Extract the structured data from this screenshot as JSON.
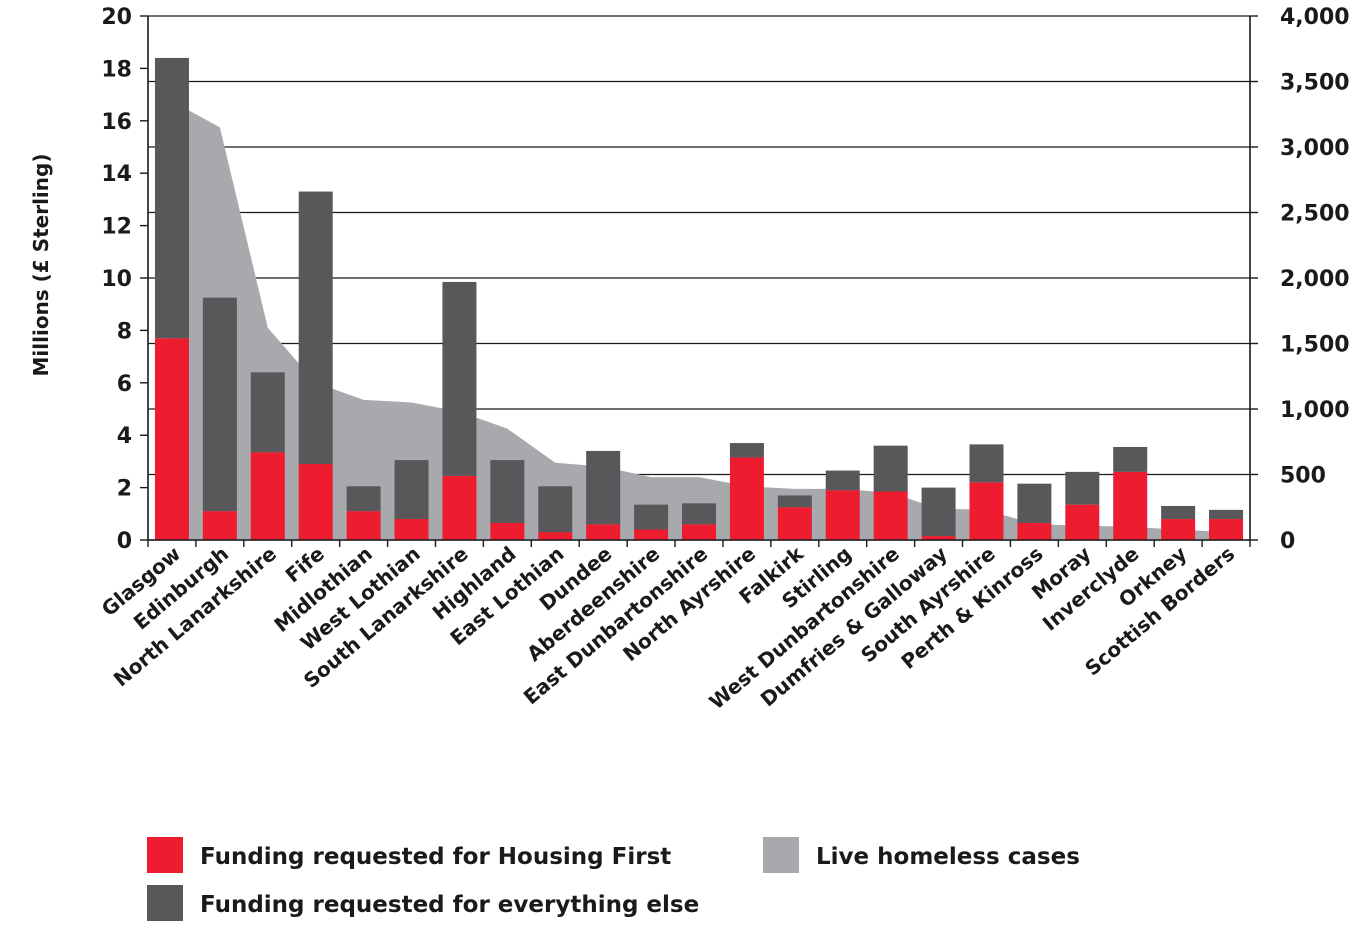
{
  "chart_data": {
    "type": "bar",
    "stacked": true,
    "ylabel": "Millions (£ Sterling)",
    "ylim": [
      0,
      20
    ],
    "yticks": [
      "0",
      "2",
      "4",
      "6",
      "8",
      "10",
      "12",
      "14",
      "16",
      "18",
      "20"
    ],
    "y2lim": [
      0,
      4000
    ],
    "y2ticks": [
      "0",
      "500",
      "1,000",
      "1,500",
      "2,000",
      "2,500",
      "3,000",
      "3,500",
      "4,000"
    ],
    "grid": true,
    "legend_position": "bottom",
    "categories": [
      "Glasgow",
      "Edinburgh",
      "North Lanarkshire",
      "Fife",
      "Midlothian",
      "West Lothian",
      "South Lanarkshire",
      "Highland",
      "East Lothian",
      "Dundee",
      "Aberdeenshire",
      "East Dunbartonshire",
      "North Ayrshire",
      "Falkirk",
      "Stirling",
      "West Dunbartonshire",
      "Dumfries & Galloway",
      "South Ayrshire",
      "Perth & Kinross",
      "Moray",
      "Inverclyde",
      "Orkney",
      "Scottish Borders"
    ],
    "series": [
      {
        "name": "Funding requested for Housing First",
        "color": "#ed1c2e",
        "axis": "left",
        "values": [
          7.7,
          1.1,
          3.35,
          2.9,
          1.1,
          0.8,
          2.45,
          0.65,
          0.3,
          0.6,
          0.4,
          0.6,
          3.15,
          1.25,
          1.9,
          1.85,
          0.15,
          2.2,
          0.65,
          1.35,
          2.6,
          0.8,
          0.8
        ]
      },
      {
        "name": "Funding requested for everything else",
        "color": "#58585a",
        "axis": "left",
        "values": [
          10.7,
          8.15,
          3.05,
          10.4,
          0.95,
          2.25,
          7.4,
          2.4,
          1.75,
          2.8,
          0.95,
          0.8,
          0.55,
          0.45,
          0.75,
          1.75,
          1.85,
          1.45,
          1.5,
          1.25,
          0.95,
          0.5,
          0.35
        ]
      },
      {
        "name": "Live homeless cases",
        "color": "#a7a9ac",
        "type": "area",
        "axis": "right",
        "values": [
          3350,
          3150,
          1620,
          1200,
          1070,
          1050,
          980,
          850,
          590,
          560,
          480,
          480,
          410,
          390,
          390,
          360,
          240,
          230,
          120,
          110,
          100,
          80,
          60
        ]
      }
    ]
  },
  "legend": {
    "housing_first": "Funding requested for Housing First",
    "everything_else": "Funding requested for everything else",
    "homeless_cases": "Live homeless cases"
  }
}
